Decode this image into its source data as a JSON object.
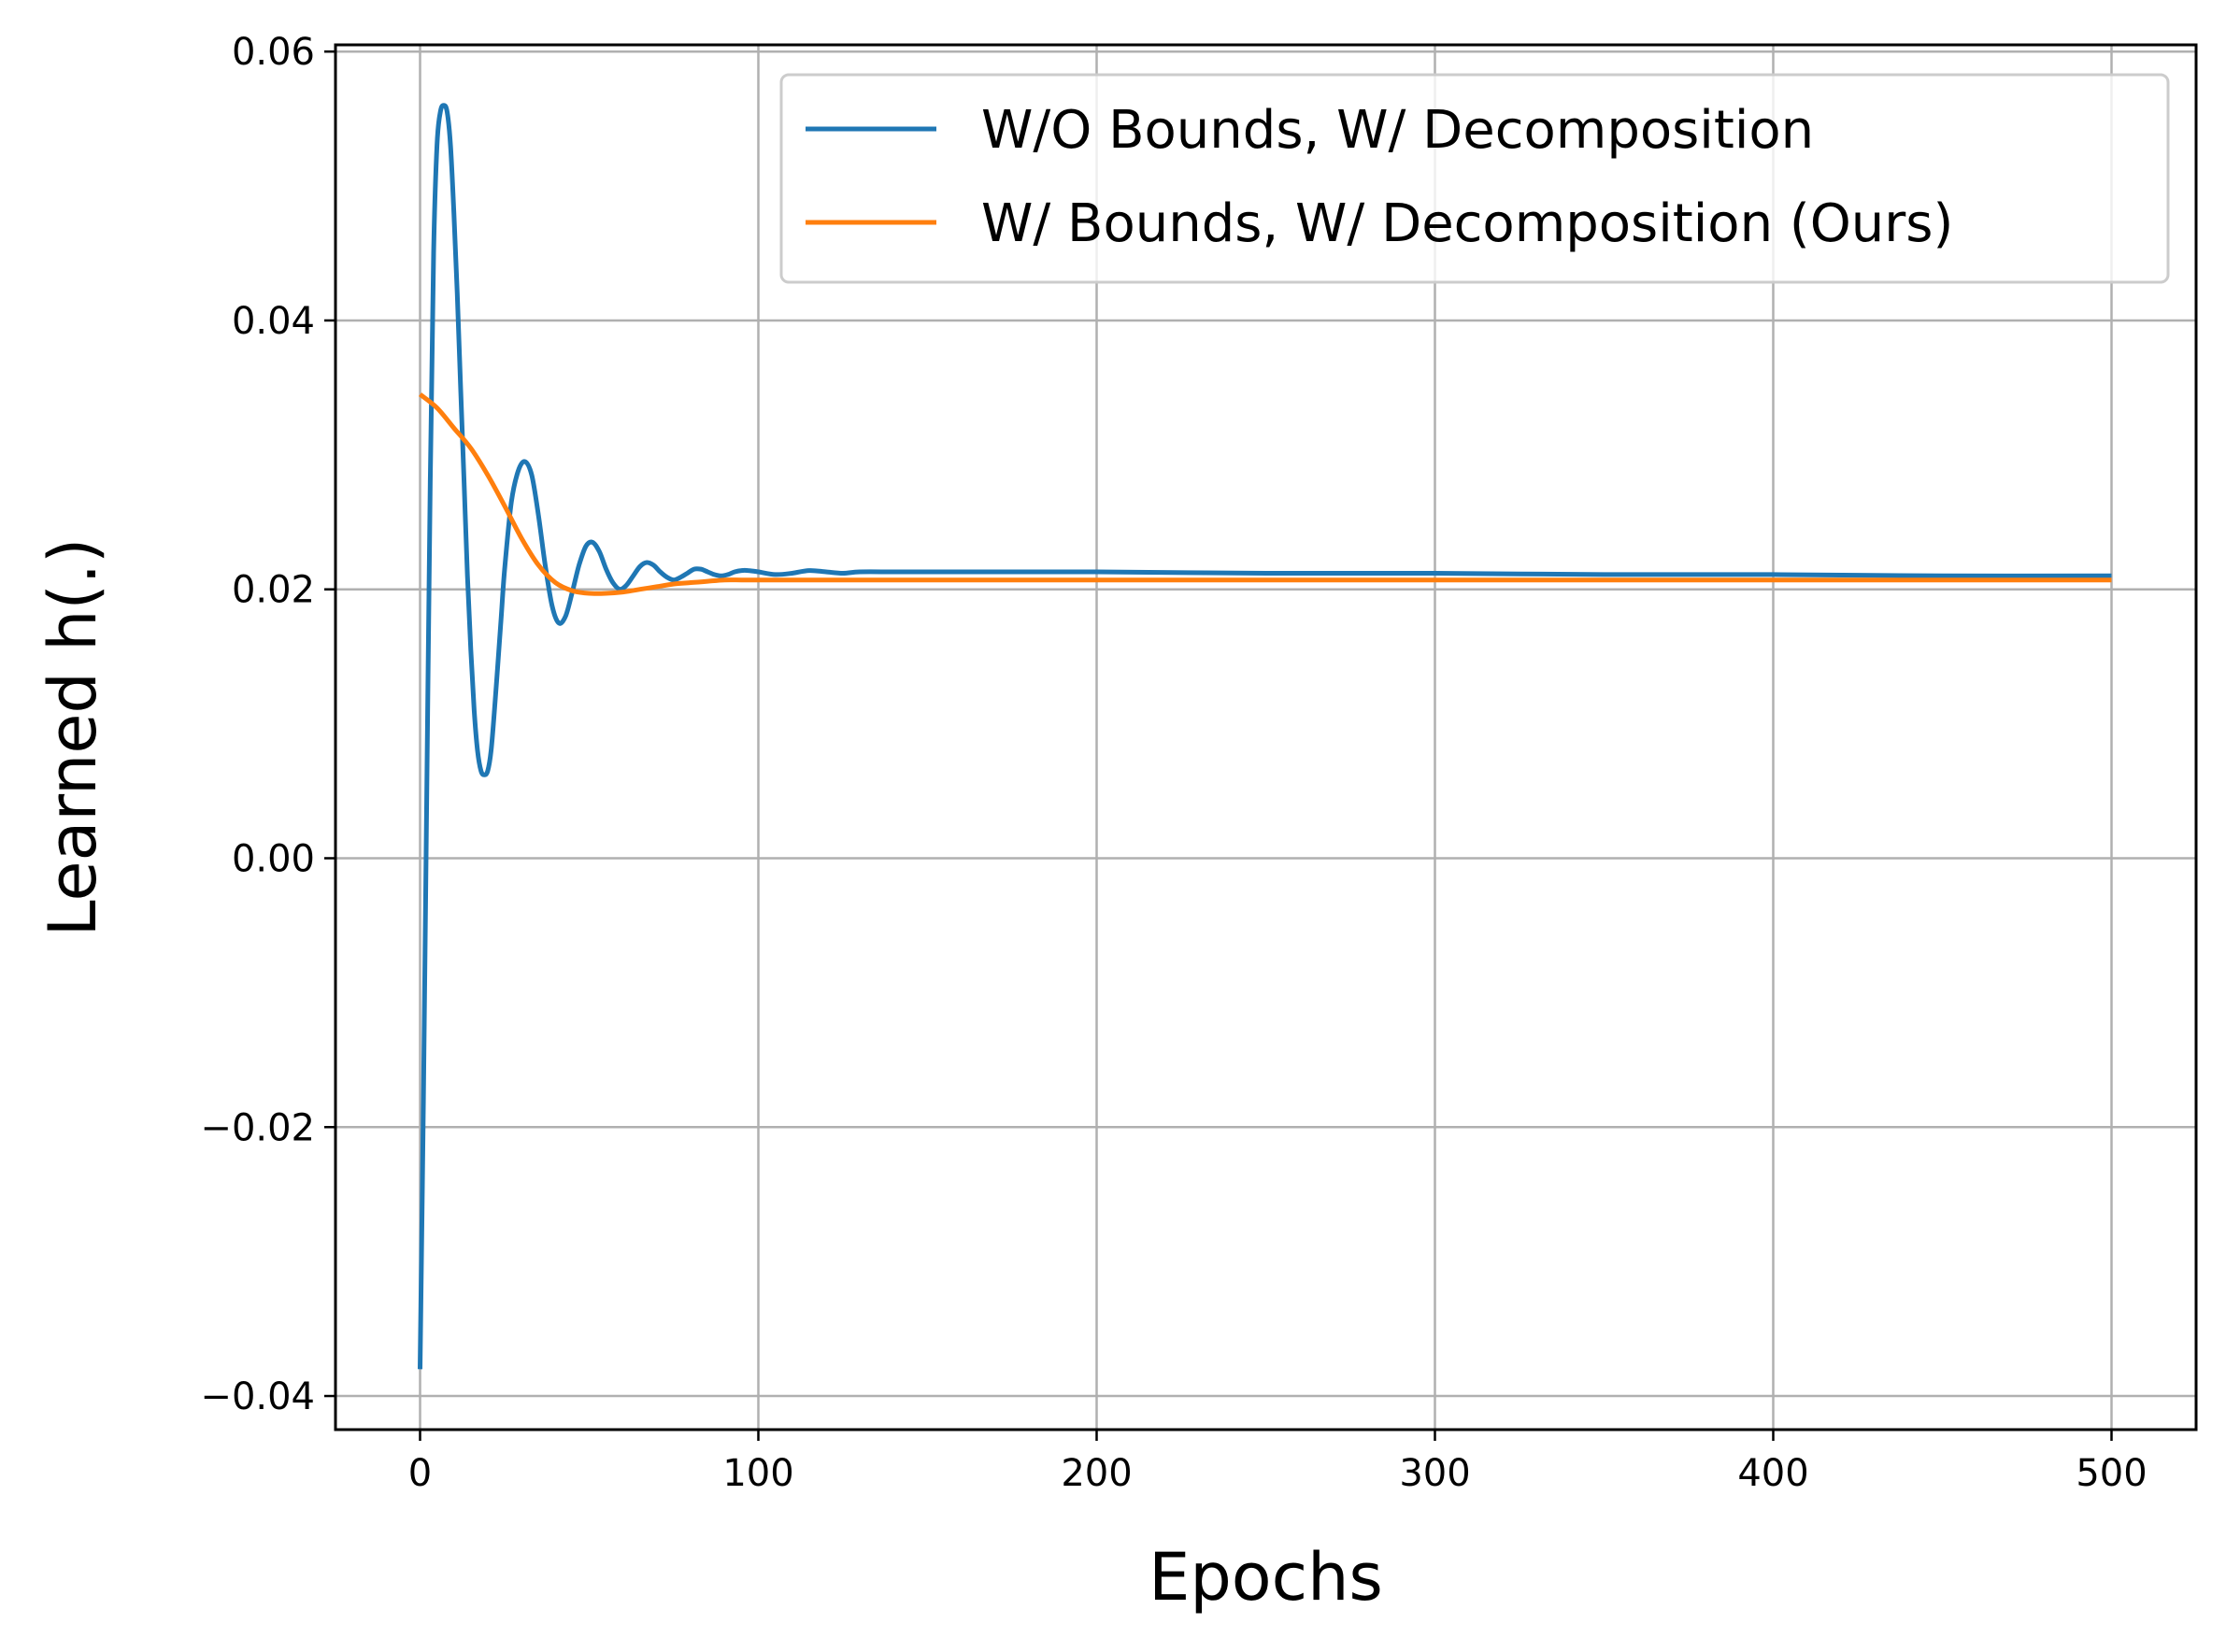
{
  "chart_data": {
    "type": "line",
    "xlabel": "Epochs",
    "ylabel": "Learned h(.)",
    "xlim": [
      -25,
      525
    ],
    "ylim": [
      -0.0425,
      0.0605
    ],
    "xticks": [
      0,
      100,
      200,
      300,
      400,
      500
    ],
    "yticks": [
      -0.04,
      -0.02,
      0.0,
      0.02,
      0.04,
      0.06
    ],
    "xtick_labels": [
      "0",
      "100",
      "200",
      "300",
      "400",
      "500"
    ],
    "ytick_labels": [
      "−0.04",
      "−0.02",
      "0.00",
      "0.02",
      "0.04",
      "0.06"
    ],
    "grid": true,
    "legend_position": "top-right",
    "series": [
      {
        "name": "W/O Bounds, W/ Decomposition",
        "color": "#1f77b4",
        "x": [
          0,
          1,
          2,
          3,
          4,
          5,
          6,
          7,
          8,
          9,
          10,
          11,
          12,
          13,
          14,
          15,
          16,
          17,
          18,
          19,
          20,
          21,
          22,
          23,
          24,
          25,
          27,
          29,
          31,
          33,
          35,
          37,
          39,
          41,
          43,
          45,
          47,
          49,
          51,
          53,
          55,
          57,
          59,
          61,
          63,
          65,
          67,
          69,
          71,
          73,
          75,
          77,
          79,
          81,
          83,
          85,
          87,
          89,
          91,
          93,
          95,
          97,
          100,
          105,
          110,
          115,
          120,
          125,
          130,
          140,
          150,
          160,
          170,
          180,
          200,
          250,
          300,
          350,
          400,
          450,
          500
        ],
        "y": [
          -0.038,
          -0.018,
          0.005,
          0.028,
          0.045,
          0.053,
          0.0555,
          0.056,
          0.0555,
          0.053,
          0.048,
          0.042,
          0.035,
          0.028,
          0.021,
          0.0155,
          0.011,
          0.008,
          0.0065,
          0.0062,
          0.0065,
          0.008,
          0.011,
          0.0145,
          0.018,
          0.0215,
          0.0265,
          0.0288,
          0.0295,
          0.0285,
          0.0255,
          0.0218,
          0.0188,
          0.0175,
          0.018,
          0.0198,
          0.0218,
          0.0232,
          0.0235,
          0.0228,
          0.0215,
          0.0205,
          0.02,
          0.0203,
          0.021,
          0.0217,
          0.022,
          0.0218,
          0.0213,
          0.0209,
          0.0207,
          0.0209,
          0.0212,
          0.0215,
          0.0215,
          0.0213,
          0.0211,
          0.021,
          0.0211,
          0.0213,
          0.0214,
          0.0214,
          0.0213,
          0.0211,
          0.0212,
          0.0214,
          0.0213,
          0.0212,
          0.0213,
          0.0213,
          0.0213,
          0.0213,
          0.0213,
          0.0213,
          0.0213,
          0.0212,
          0.0212,
          0.0211,
          0.0211,
          0.021,
          0.021
        ]
      },
      {
        "name": "W/ Bounds, W/ Decomposition (Ours)",
        "color": "#ff7f0e",
        "x": [
          0,
          5,
          10,
          15,
          20,
          25,
          30,
          35,
          40,
          45,
          50,
          55,
          60,
          65,
          70,
          75,
          80,
          85,
          90,
          95,
          100,
          110,
          120,
          150,
          200,
          300,
          400,
          500
        ],
        "y": [
          0.0345,
          0.0335,
          0.032,
          0.0305,
          0.0285,
          0.0262,
          0.0238,
          0.0218,
          0.0205,
          0.0199,
          0.0197,
          0.0197,
          0.0198,
          0.02,
          0.0202,
          0.0204,
          0.0205,
          0.0206,
          0.0207,
          0.0207,
          0.0207,
          0.0207,
          0.0207,
          0.0207,
          0.0207,
          0.0207,
          0.0207,
          0.0207
        ]
      }
    ]
  }
}
